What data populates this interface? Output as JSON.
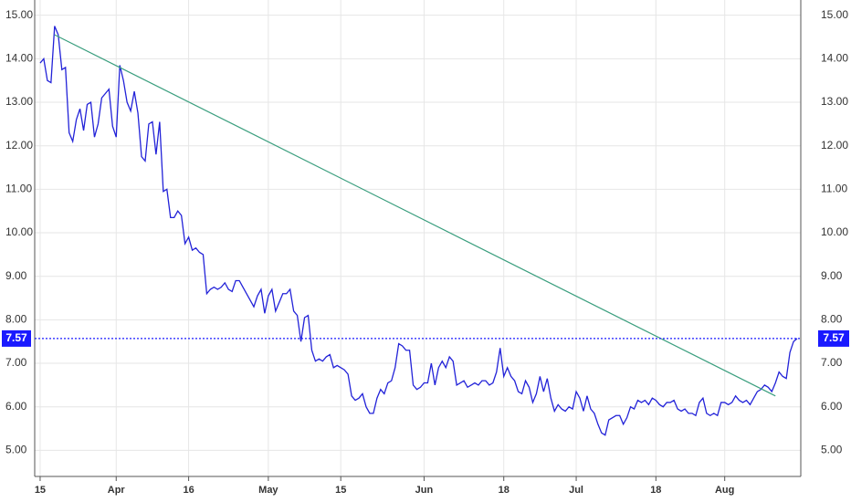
{
  "chart_data": {
    "type": "line",
    "series": [
      {
        "color": "#2222d8",
        "values": [
          13.9,
          14.0,
          13.5,
          13.45,
          14.75,
          14.55,
          13.75,
          13.8,
          12.3,
          12.1,
          12.6,
          12.85,
          12.35,
          12.95,
          13.0,
          12.2,
          12.5,
          13.1,
          13.2,
          13.3,
          12.45,
          12.2,
          13.85,
          13.5,
          13.0,
          12.8,
          13.25,
          12.75,
          11.75,
          11.65,
          12.5,
          12.55,
          11.8,
          12.55,
          10.95,
          11.0,
          10.35,
          10.35,
          10.5,
          10.4,
          9.75,
          9.9,
          9.6,
          9.65,
          9.55,
          9.5,
          8.6,
          8.7,
          8.75,
          8.7,
          8.75,
          8.85,
          8.7,
          8.65,
          8.9,
          8.9,
          8.75,
          8.6,
          8.45,
          8.3,
          8.55,
          8.7,
          8.15,
          8.55,
          8.7,
          8.2,
          8.4,
          8.6,
          8.6,
          8.7,
          8.2,
          8.1,
          7.5,
          8.05,
          8.1,
          7.3,
          7.05,
          7.1,
          7.05,
          7.15,
          7.2,
          6.9,
          6.95,
          6.9,
          6.85,
          6.75,
          6.25,
          6.15,
          6.2,
          6.3,
          6.0,
          5.85,
          5.85,
          6.2,
          6.4,
          6.3,
          6.55,
          6.6,
          6.9,
          7.45,
          7.4,
          7.3,
          7.3,
          6.5,
          6.4,
          6.45,
          6.55,
          6.55,
          7.0,
          6.5,
          6.9,
          7.05,
          6.9,
          7.15,
          7.05,
          6.5,
          6.55,
          6.6,
          6.45,
          6.5,
          6.55,
          6.5,
          6.6,
          6.6,
          6.5,
          6.55,
          6.8,
          7.35,
          6.7,
          6.9,
          6.7,
          6.6,
          6.35,
          6.3,
          6.6,
          6.45,
          6.1,
          6.3,
          6.7,
          6.35,
          6.65,
          6.2,
          5.9,
          6.05,
          5.95,
          5.9,
          6.0,
          5.95,
          6.35,
          6.2,
          5.9,
          6.25,
          5.95,
          5.85,
          5.6,
          5.4,
          5.35,
          5.7,
          5.75,
          5.8,
          5.8,
          5.6,
          5.75,
          6.0,
          5.95,
          6.15,
          6.1,
          6.15,
          6.05,
          6.2,
          6.15,
          6.05,
          6.0,
          6.1,
          6.1,
          6.15,
          5.95,
          5.9,
          5.95,
          5.85,
          5.85,
          5.8,
          6.1,
          6.2,
          5.85,
          5.8,
          5.85,
          5.8,
          6.1,
          6.1,
          6.05,
          6.1,
          6.25,
          6.15,
          6.1,
          6.15,
          6.05,
          6.2,
          6.35,
          6.4,
          6.5,
          6.45,
          6.35,
          6.55,
          6.8,
          6.7,
          6.65,
          7.25,
          7.5,
          7.57
        ]
      }
    ],
    "trendline": {
      "color": "#3a9e7e",
      "x": [
        4,
        203
      ],
      "values": [
        14.55,
        6.25
      ]
    },
    "last_price": 7.57,
    "last_price_color": "#1a1aff",
    "xlim": [
      -1.5,
      210
    ],
    "xticks": [
      {
        "value": 0,
        "label": "15"
      },
      {
        "value": 21,
        "label": "Apr"
      },
      {
        "value": 41,
        "label": "16"
      },
      {
        "value": 63,
        "label": "May"
      },
      {
        "value": 83,
        "label": "15"
      },
      {
        "value": 106,
        "label": "Jun"
      },
      {
        "value": 128,
        "label": "18"
      },
      {
        "value": 148,
        "label": "Jul"
      },
      {
        "value": 170,
        "label": "18"
      },
      {
        "value": 189,
        "label": "Aug"
      }
    ],
    "ylim": [
      4.4,
      15.35
    ],
    "yticks": [
      {
        "value": 5,
        "label": "5.00"
      },
      {
        "value": 6,
        "label": "6.00"
      },
      {
        "value": 7,
        "label": "7.00"
      },
      {
        "value": 8,
        "label": "8.00"
      },
      {
        "value": 9,
        "label": "9.00"
      },
      {
        "value": 10,
        "label": "10.00"
      },
      {
        "value": 11,
        "label": "11.00"
      },
      {
        "value": 12,
        "label": "12.00"
      },
      {
        "value": 13,
        "label": "13.00"
      },
      {
        "value": 14,
        "label": "14.00"
      },
      {
        "value": 15,
        "label": "15.00"
      }
    ],
    "grid": true
  }
}
